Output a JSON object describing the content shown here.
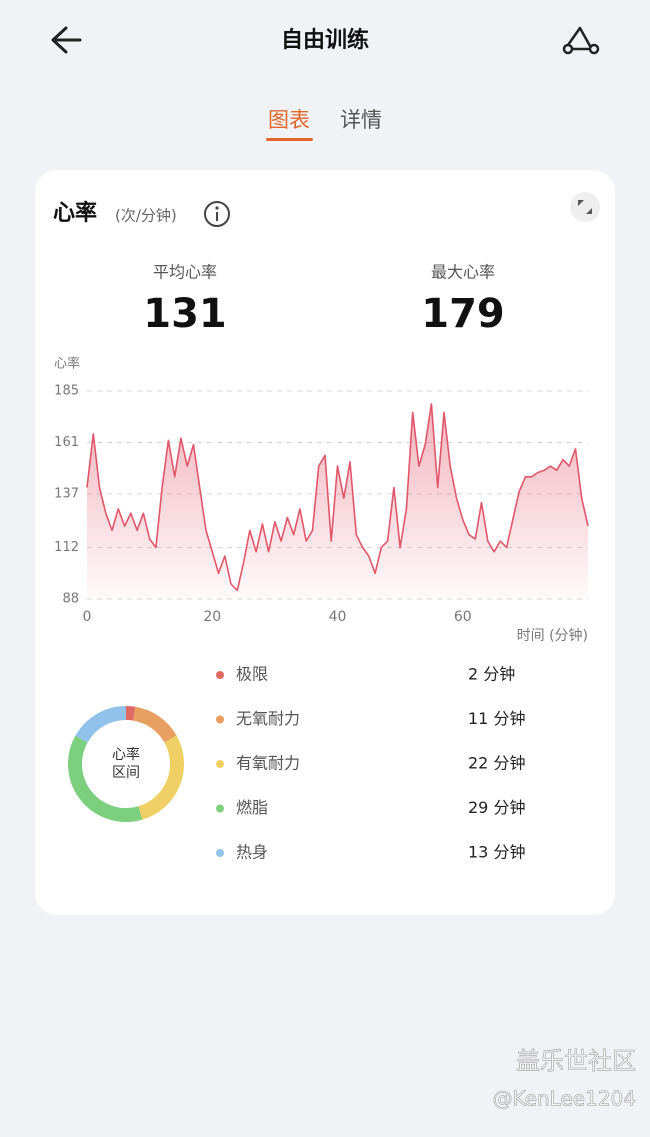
{
  "header": {
    "title": "自由训练"
  },
  "tabs": {
    "items": [
      "图表",
      "详情"
    ],
    "active": 0
  },
  "card": {
    "title": "心率",
    "unit": "(次/分钟)",
    "stats": [
      {
        "label": "平均心率",
        "value": 131
      },
      {
        "label": "最大心率",
        "value": 179
      }
    ]
  },
  "chart_data": [
    {
      "type": "line",
      "y_label": "心率",
      "x_label": "时间 (分钟)",
      "color": "#e0566a",
      "area": true,
      "grid": true,
      "x": [
        0,
        1,
        2,
        3,
        4,
        5,
        6,
        7,
        8,
        9,
        10,
        11,
        12,
        13,
        14,
        15,
        16,
        17,
        18,
        19,
        20,
        21,
        22,
        23,
        24,
        25,
        26,
        27,
        28,
        29,
        30,
        31,
        32,
        33,
        34,
        35,
        36,
        37,
        38,
        39,
        40,
        41,
        42,
        43,
        44,
        45,
        46,
        47,
        48,
        49,
        50,
        51,
        52,
        53,
        54,
        55,
        56,
        57,
        58,
        59,
        60,
        61,
        62,
        63,
        64,
        65,
        66,
        67,
        68,
        69,
        70,
        71,
        72,
        73,
        74,
        75,
        76,
        77,
        78,
        79,
        80
      ],
      "values": [
        140,
        165,
        140,
        128,
        120,
        130,
        122,
        128,
        120,
        128,
        116,
        112,
        140,
        162,
        145,
        163,
        150,
        160,
        140,
        120,
        110,
        100,
        108,
        95,
        92,
        105,
        120,
        110,
        123,
        110,
        124,
        115,
        126,
        118,
        130,
        115,
        120,
        150,
        155,
        115,
        150,
        135,
        152,
        118,
        112,
        108,
        100,
        112,
        115,
        140,
        112,
        130,
        175,
        150,
        160,
        179,
        140,
        175,
        150,
        135,
        125,
        118,
        116,
        133,
        115,
        110,
        115,
        112,
        125,
        138,
        145,
        145,
        147,
        148,
        150,
        148,
        153,
        150,
        158,
        135,
        122
      ],
      "xlim": [
        0,
        80
      ],
      "xticks": [
        0,
        20,
        40,
        60
      ],
      "ylim": [
        88,
        185
      ],
      "yticks": [
        88,
        112,
        137,
        161,
        185
      ]
    },
    {
      "type": "pie",
      "donut": true,
      "center_label": [
        "心率",
        "区间"
      ],
      "categories": [
        "极限",
        "无氧耐力",
        "有氧耐力",
        "燃脂",
        "热身"
      ],
      "values": [
        2,
        11,
        22,
        29,
        13
      ],
      "value_labels": [
        "2 分钟",
        "11 分钟",
        "22 分钟",
        "29 分钟",
        "13 分钟"
      ],
      "colors": [
        "#e06a62",
        "#e8a060",
        "#f0d064",
        "#7ccf7c",
        "#90c2ec"
      ]
    }
  ],
  "watermark": {
    "line1": "盖乐世社区",
    "line2": "@KenLee1204"
  }
}
